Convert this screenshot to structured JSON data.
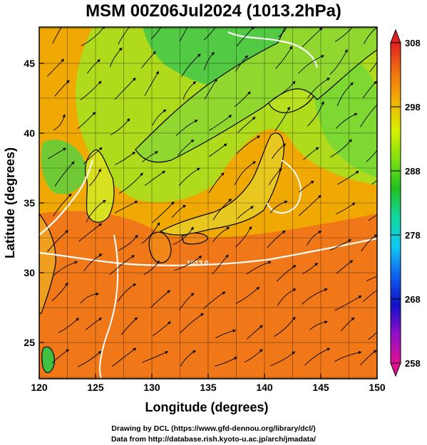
{
  "title": "MSM 00Z06Jul2024 (1013.2hPa)",
  "credits": {
    "line1": "Drawing by DCL (https://www.gfd-dennou.org/library/dcl/)",
    "line2": "Data from http://database.rish.kyoto-u.ac.jp/arch/jmadata/"
  },
  "map": {
    "lon_range": [
      120,
      150
    ],
    "lat_range": [
      22.4,
      47.6
    ],
    "lon_ticks": [
      120,
      125,
      130,
      135,
      140,
      145,
      150
    ],
    "lat_ticks": [
      25,
      30,
      35,
      40,
      45
    ],
    "xlabel": "Longitude (degrees)",
    "ylabel": "Latitude  (degrees)",
    "grid_spacing_deg": 2.5,
    "contour_label": "1013.0",
    "contour_color": "#ffffff",
    "coastline_color": "#000000"
  },
  "colorbar": {
    "min": 258,
    "max": 308,
    "tick_values": [
      308,
      298,
      288,
      278,
      268,
      258
    ],
    "tick_labels": [
      "308",
      "298",
      "288",
      "278",
      "268",
      "258"
    ],
    "colors": [
      "#e01090",
      "#9010c8",
      "#1010c8",
      "#1060f0",
      "#10c8f0",
      "#10d8a0",
      "#20c020",
      "#80e010",
      "#d8f000",
      "#f0b000",
      "#f07010",
      "#e02020"
    ]
  },
  "field_colors": {
    "warm": "#f07818",
    "mid": "#f0b000",
    "cool": "#a8e020",
    "cold": "#40c840"
  }
}
